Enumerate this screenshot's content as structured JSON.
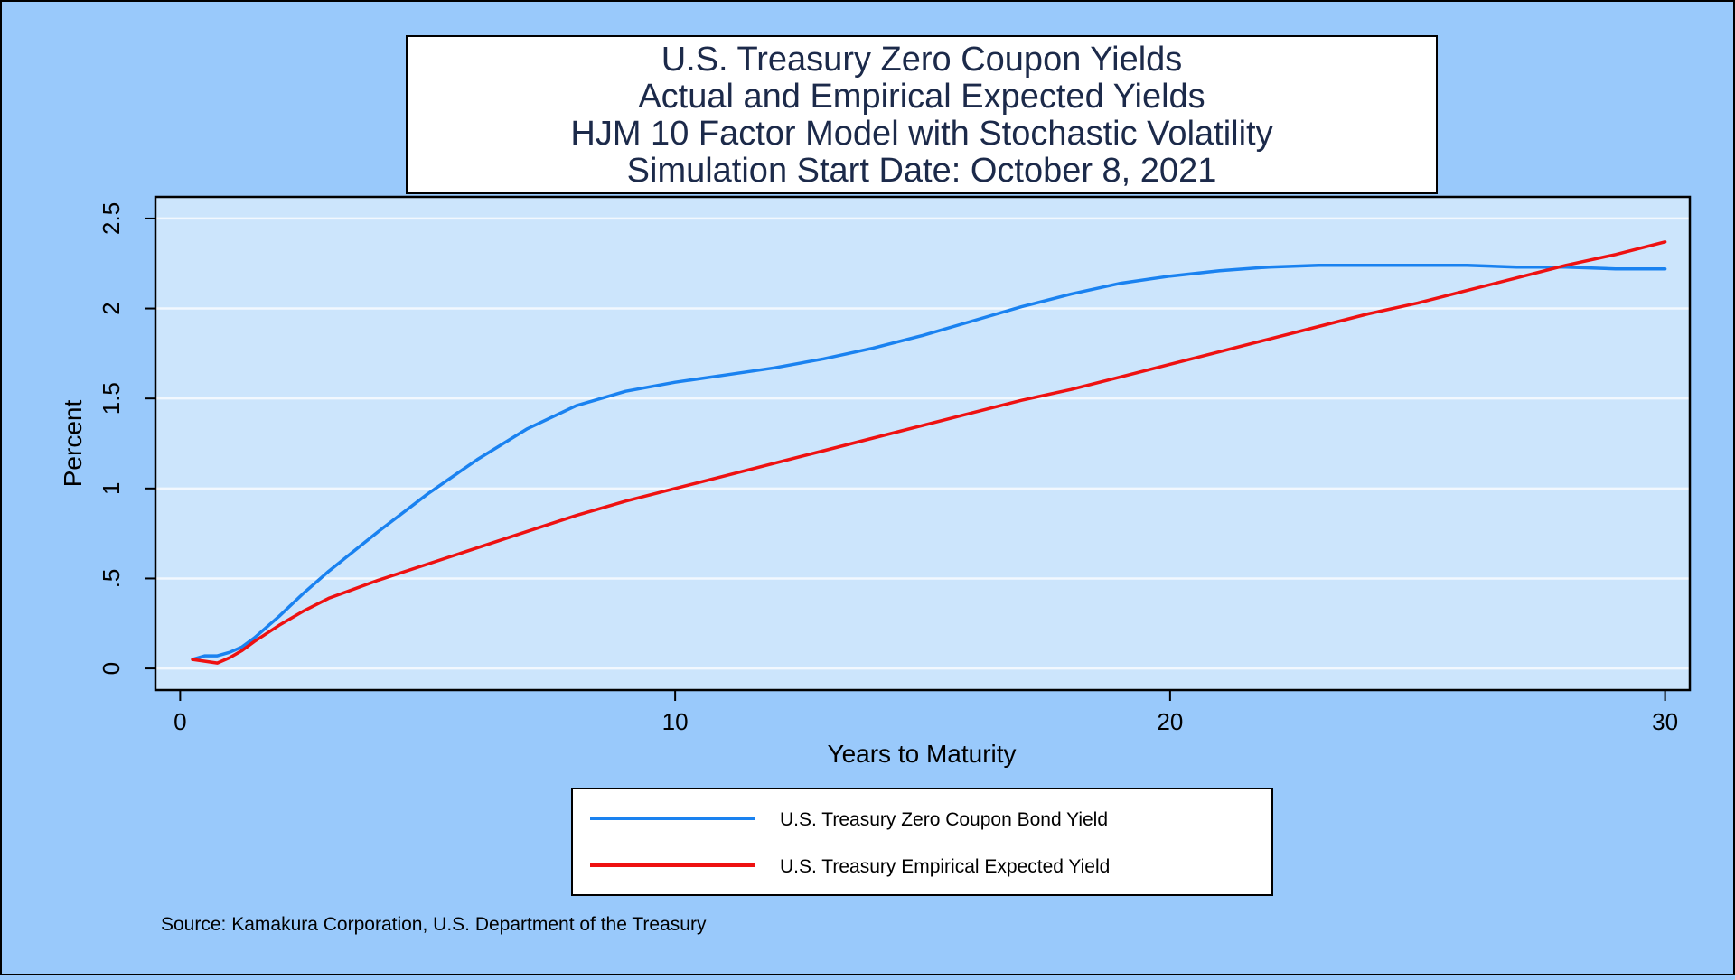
{
  "chart_data": {
    "type": "line",
    "title_lines": [
      "U.S. Treasury Zero Coupon Yields",
      "Actual and Empirical Expected Yields",
      "HJM 10 Factor Model with Stochastic Volatility",
      "Simulation Start Date: October 8, 2021"
    ],
    "xlabel": "Years to Maturity",
    "ylabel": "Percent",
    "xlim": [
      -0.5,
      30.5
    ],
    "ylim": [
      -0.12,
      2.62
    ],
    "xticks": [
      0,
      10,
      20,
      30
    ],
    "xtick_labels": [
      "0",
      "10",
      "20",
      "30"
    ],
    "yticks": [
      0,
      0.5,
      1,
      1.5,
      2,
      2.5
    ],
    "ytick_labels": [
      "0",
      ".5",
      "1",
      "1.5",
      "2",
      "2.5"
    ],
    "grid": true,
    "legend_position": "bottom",
    "colors": {
      "background": "#99c9fb",
      "plot_area": "#cce5fc",
      "grid": "#f2f8fe",
      "axis": "#000000"
    },
    "series": [
      {
        "name": "U.S. Treasury Zero Coupon Bond Yield",
        "color": "#1a82f0",
        "x": [
          0.25,
          0.5,
          0.75,
          1,
          1.25,
          1.5,
          2,
          2.5,
          3,
          4,
          5,
          6,
          7,
          8,
          9,
          10,
          11,
          12,
          13,
          14,
          15,
          16,
          17,
          18,
          19,
          20,
          21,
          22,
          23,
          24,
          25,
          26,
          27,
          28,
          29,
          30
        ],
        "y": [
          0.05,
          0.07,
          0.07,
          0.09,
          0.12,
          0.17,
          0.29,
          0.42,
          0.54,
          0.76,
          0.97,
          1.16,
          1.33,
          1.46,
          1.54,
          1.59,
          1.63,
          1.67,
          1.72,
          1.78,
          1.85,
          1.93,
          2.01,
          2.08,
          2.14,
          2.18,
          2.21,
          2.23,
          2.24,
          2.24,
          2.24,
          2.24,
          2.23,
          2.23,
          2.22,
          2.22
        ]
      },
      {
        "name": "U.S. Treasury Empirical Expected Yield",
        "color": "#ee1111",
        "x": [
          0.25,
          0.5,
          0.75,
          1,
          1.25,
          1.5,
          2,
          2.5,
          3,
          4,
          5,
          6,
          7,
          8,
          9,
          10,
          11,
          12,
          13,
          14,
          15,
          16,
          17,
          18,
          19,
          20,
          21,
          22,
          23,
          24,
          25,
          26,
          27,
          28,
          29,
          30
        ],
        "y": [
          0.05,
          0.04,
          0.03,
          0.06,
          0.1,
          0.15,
          0.24,
          0.32,
          0.39,
          0.49,
          0.58,
          0.67,
          0.76,
          0.85,
          0.93,
          1.0,
          1.07,
          1.14,
          1.21,
          1.28,
          1.35,
          1.42,
          1.49,
          1.55,
          1.62,
          1.69,
          1.76,
          1.83,
          1.9,
          1.97,
          2.03,
          2.1,
          2.17,
          2.24,
          2.3,
          2.37
        ]
      }
    ],
    "note": "Source: Kamakura Corporation, U.S. Department of the Treasury"
  }
}
